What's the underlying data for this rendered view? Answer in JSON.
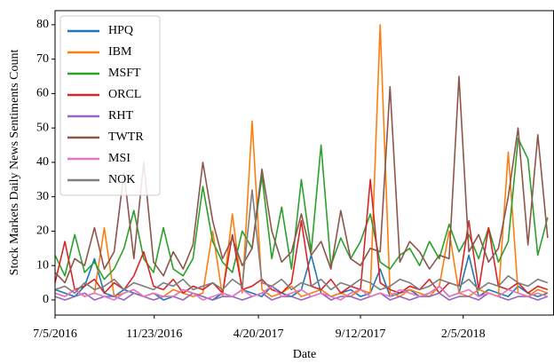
{
  "chart_data": {
    "type": "line",
    "xlabel": "Date",
    "ylabel": "Stock Markets Daily News Sentiments Count",
    "x": [
      "7/5/2016",
      "7/19/2016",
      "8/2/2016",
      "8/16/2016",
      "8/30/2016",
      "9/13/2016",
      "9/27/2016",
      "10/11/2016",
      "10/25/2016",
      "11/8/2016",
      "11/22/2016",
      "12/6/2016",
      "12/20/2016",
      "1/3/2017",
      "1/17/2017",
      "1/31/2017",
      "2/14/2017",
      "2/28/2017",
      "3/14/2017",
      "3/28/2017",
      "4/11/2017",
      "4/25/2017",
      "5/9/2017",
      "5/23/2017",
      "6/6/2017",
      "6/20/2017",
      "7/4/2017",
      "7/18/2017",
      "8/1/2017",
      "8/15/2017",
      "8/29/2017",
      "9/12/2017",
      "9/26/2017",
      "10/10/2017",
      "10/24/2017",
      "11/7/2017",
      "11/21/2017",
      "12/5/2017",
      "12/19/2017",
      "1/2/2018",
      "1/16/2018",
      "1/30/2018",
      "2/13/2018",
      "2/27/2018",
      "3/13/2018",
      "3/27/2018",
      "4/10/2018",
      "4/24/2018",
      "5/8/2018",
      "5/22/2018",
      "6/5/2018"
    ],
    "series": [
      {
        "name": "HPQ",
        "color": "#1f77b4",
        "values": [
          3,
          2,
          1,
          4,
          12,
          2,
          1,
          3,
          2,
          1,
          2,
          0,
          1,
          3,
          2,
          1,
          0,
          2,
          1,
          3,
          2,
          1,
          4,
          2,
          1,
          3,
          13,
          2,
          1,
          2,
          3,
          1,
          2,
          9,
          1,
          2,
          3,
          1,
          2,
          4,
          1,
          2,
          13,
          1,
          3,
          2,
          1,
          4,
          2,
          1,
          2
        ]
      },
      {
        "name": "IBM",
        "color": "#ff7f0e",
        "values": [
          2,
          1,
          3,
          1,
          2,
          21,
          1,
          2,
          3,
          1,
          2,
          1,
          3,
          2,
          1,
          2,
          20,
          1,
          25,
          2,
          52,
          3,
          1,
          2,
          4,
          1,
          2,
          3,
          1,
          2,
          1,
          3,
          2,
          80,
          2,
          1,
          3,
          2,
          1,
          4,
          20,
          2,
          1,
          3,
          2,
          1,
          43,
          2,
          1,
          3,
          2
        ]
      },
      {
        "name": "MSFT",
        "color": "#2ca02c",
        "values": [
          13,
          7,
          19,
          8,
          11,
          6,
          9,
          15,
          26,
          12,
          8,
          21,
          9,
          7,
          12,
          33,
          17,
          11,
          8,
          20,
          15,
          36,
          12,
          27,
          9,
          35,
          14,
          45,
          10,
          18,
          12,
          17,
          25,
          11,
          9,
          13,
          15,
          10,
          17,
          12,
          22,
          14,
          19,
          12,
          21,
          11,
          17,
          47,
          41,
          13,
          24
        ]
      },
      {
        "name": "ORCL",
        "color": "#d62728",
        "values": [
          5,
          17,
          3,
          4,
          6,
          2,
          5,
          3,
          7,
          14,
          4,
          3,
          6,
          2,
          4,
          3,
          5,
          2,
          19,
          3,
          4,
          6,
          3,
          2,
          5,
          23,
          4,
          3,
          6,
          2,
          4,
          3,
          35,
          5,
          3,
          2,
          4,
          3,
          6,
          2,
          5,
          4,
          23,
          3,
          21,
          4,
          3,
          5,
          2,
          4,
          3
        ]
      },
      {
        "name": "RHT",
        "color": "#9467bd",
        "values": [
          1,
          0,
          1,
          2,
          0,
          1,
          1,
          0,
          2,
          1,
          0,
          1,
          1,
          0,
          2,
          1,
          0,
          1,
          1,
          0,
          1,
          2,
          0,
          1,
          1,
          0,
          1,
          2,
          0,
          1,
          1,
          0,
          1,
          2,
          0,
          1,
          0,
          1,
          1,
          2,
          0,
          1,
          1,
          0,
          2,
          1,
          0,
          1,
          1,
          0,
          1
        ]
      },
      {
        "name": "TWTR",
        "color": "#8c564b",
        "values": [
          8,
          5,
          12,
          10,
          21,
          9,
          14,
          37,
          12,
          40,
          11,
          7,
          14,
          9,
          16,
          40,
          23,
          12,
          18,
          10,
          15,
          38,
          20,
          11,
          14,
          25,
          13,
          17,
          9,
          26,
          12,
          10,
          15,
          14,
          62,
          11,
          17,
          14,
          9,
          13,
          12,
          65,
          14,
          19,
          11,
          15,
          30,
          50,
          16,
          48,
          18
        ]
      },
      {
        "name": "MSI",
        "color": "#e377c2",
        "values": [
          2,
          1,
          3,
          1,
          2,
          1,
          0,
          2,
          3,
          1,
          2,
          1,
          1,
          3,
          2,
          0,
          1,
          2,
          1,
          3,
          1,
          2,
          4,
          1,
          2,
          3,
          1,
          2,
          1,
          0,
          2,
          3,
          1,
          2,
          1,
          3,
          2,
          1,
          2,
          4,
          1,
          2,
          3,
          1,
          2,
          1,
          3,
          2,
          1,
          2,
          1
        ]
      },
      {
        "name": "NOK",
        "color": "#7f7f7f",
        "values": [
          3,
          4,
          2,
          5,
          3,
          4,
          6,
          3,
          5,
          4,
          3,
          5,
          4,
          6,
          3,
          4,
          5,
          3,
          6,
          4,
          32,
          5,
          4,
          6,
          3,
          5,
          4,
          6,
          3,
          5,
          4,
          6,
          5,
          3,
          4,
          6,
          5,
          3,
          4,
          6,
          5,
          4,
          6,
          3,
          5,
          4,
          7,
          5,
          4,
          6,
          5
        ]
      }
    ],
    "xlim": [
      "7/5/2016",
      "6/14/2018"
    ],
    "xticks": [
      "7/5/2016",
      "11/23/2016",
      "4/20/2017",
      "9/12/2017",
      "2/5/2018"
    ],
    "ylim": [
      -4.4,
      84.1
    ],
    "yticks": [
      0,
      10,
      20,
      30,
      40,
      50,
      60,
      70,
      80
    ],
    "legend": "upper left"
  }
}
